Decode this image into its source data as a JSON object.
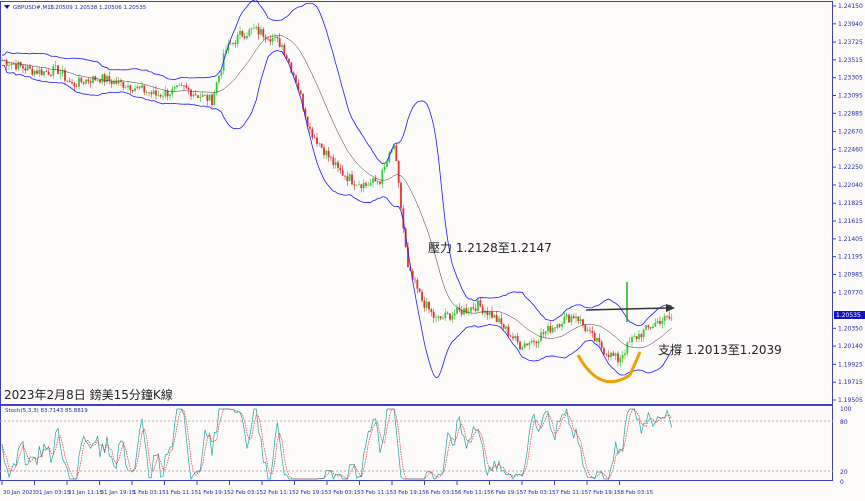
{
  "header": {
    "symbol": "GBPUSD#,M15",
    "ohlc": "1.20509 1.20538 1.20506 1.20535"
  },
  "annotations": {
    "resistance": "壓力 1.2128至1.2147",
    "support": "支撐 1.2013至1.2039",
    "caption": "2023年2月8日 鎊美15分鐘K線"
  },
  "indicator": {
    "label": "Stoch(5,3,3) 83.7143 85.8819",
    "levels": [
      "100",
      "80",
      "20",
      "0"
    ]
  },
  "colors": {
    "bull": "#33cc33",
    "bear": "#e03030",
    "band": "#1a1aff",
    "axis": "#4040c0",
    "stoch_main": "#20a0a0",
    "stoch_signal": "#e03030",
    "support_curve": "#f0a000"
  },
  "chart_data": {
    "type": "candlestick",
    "price_ticks": [
      "1.24150",
      "1.23940",
      "1.23725",
      "1.23515",
      "1.23305",
      "1.23095",
      "1.22885",
      "1.22670",
      "1.22460",
      "1.22250",
      "1.22040",
      "1.21825",
      "1.21615",
      "1.21405",
      "1.21195",
      "1.20985",
      "1.20770",
      "1.20350",
      "1.20140",
      "1.19925",
      "1.19715",
      "1.19505"
    ],
    "current_price": "1.20535",
    "ylim": [
      1.19505,
      1.2415
    ],
    "time_ticks": [
      "30 Jan 2023",
      "31 Jan 03:15",
      "31 Jan 11:15",
      "31 Jan 19:15",
      "1 Feb 03:15",
      "1 Feb 11:15",
      "1 Feb 19:15",
      "2 Feb 03:15",
      "2 Feb 11:15",
      "2 Feb 19:15",
      "3 Feb 03:15",
      "3 Feb 11:15",
      "3 Feb 19:15",
      "6 Feb 03:15",
      "6 Feb 11:15",
      "6 Feb 19:15",
      "7 Feb 03:15",
      "7 Feb 11:15",
      "7 Feb 19:15",
      "8 Feb 03:15"
    ],
    "close_path": [
      1.23513,
      1.23454,
      1.23395,
      1.23372,
      1.23395,
      1.23219,
      1.23278,
      1.23301,
      1.23254,
      1.23219,
      1.2316,
      1.23101,
      1.23136,
      1.23183,
      1.23101,
      1.23042,
      1.23631,
      1.23808,
      1.23867,
      1.23808,
      1.2369,
      1.23278,
      1.22688,
      1.22452,
      1.22216,
      1.22099,
      1.2204,
      1.22099,
      1.22511,
      1.21037,
      1.20683,
      1.20448,
      1.20507,
      1.20566,
      1.20625,
      1.20507,
      1.2033,
      1.20153,
      1.20212,
      1.2033,
      1.20448,
      1.20507,
      1.20271,
      1.20094,
      1.19976,
      1.20212,
      1.2033,
      1.20448,
      1.20472
    ]
  }
}
